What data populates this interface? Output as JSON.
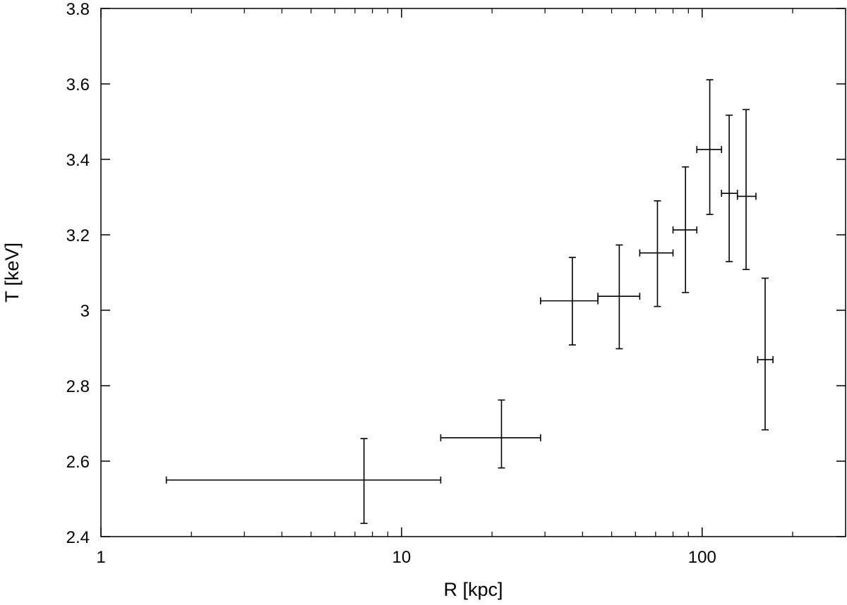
{
  "chart_data": {
    "type": "scatter",
    "title": "",
    "xlabel": "R [kpc]",
    "ylabel": "T [keV]",
    "x_scale": "log",
    "xlim": [
      1,
      300
    ],
    "ylim": [
      2.4,
      3.8
    ],
    "grid": false,
    "x_ticks": [
      {
        "value": 1,
        "label": "1"
      },
      {
        "value": 10,
        "label": "10"
      },
      {
        "value": 100,
        "label": "100"
      }
    ],
    "y_ticks": [
      {
        "value": 2.4,
        "label": "2.4"
      },
      {
        "value": 2.6,
        "label": "2.6"
      },
      {
        "value": 2.8,
        "label": "2.8"
      },
      {
        "value": 3.0,
        "label": "3"
      },
      {
        "value": 3.2,
        "label": "3.2"
      },
      {
        "value": 3.4,
        "label": "3.4"
      },
      {
        "value": 3.6,
        "label": "3.6"
      },
      {
        "value": 3.8,
        "label": "3.8"
      }
    ],
    "points": [
      {
        "x": 7.5,
        "x_low": 1.65,
        "x_high": 13.5,
        "y": 2.55,
        "y_low": 2.435,
        "y_high": 2.66
      },
      {
        "x": 21.5,
        "x_low": 13.5,
        "x_high": 29.0,
        "y": 2.662,
        "y_low": 2.582,
        "y_high": 2.762
      },
      {
        "x": 37.0,
        "x_low": 29.0,
        "x_high": 45.0,
        "y": 3.025,
        "y_low": 2.908,
        "y_high": 3.14
      },
      {
        "x": 53.0,
        "x_low": 45.0,
        "x_high": 62.0,
        "y": 3.037,
        "y_low": 2.898,
        "y_high": 3.173
      },
      {
        "x": 71.0,
        "x_low": 62.0,
        "x_high": 80.0,
        "y": 3.152,
        "y_low": 3.01,
        "y_high": 3.29
      },
      {
        "x": 88.0,
        "x_low": 80.0,
        "x_high": 96.0,
        "y": 3.213,
        "y_low": 3.047,
        "y_high": 3.38
      },
      {
        "x": 106.0,
        "x_low": 96.0,
        "x_high": 116.0,
        "y": 3.426,
        "y_low": 3.254,
        "y_high": 3.611
      },
      {
        "x": 123.0,
        "x_low": 116.0,
        "x_high": 131.0,
        "y": 3.31,
        "y_low": 3.129,
        "y_high": 3.517
      },
      {
        "x": 140.0,
        "x_low": 131.0,
        "x_high": 151.0,
        "y": 3.302,
        "y_low": 3.108,
        "y_high": 3.532
      },
      {
        "x": 162.0,
        "x_low": 153.0,
        "x_high": 172.0,
        "y": 2.869,
        "y_low": 2.683,
        "y_high": 3.085
      }
    ]
  }
}
